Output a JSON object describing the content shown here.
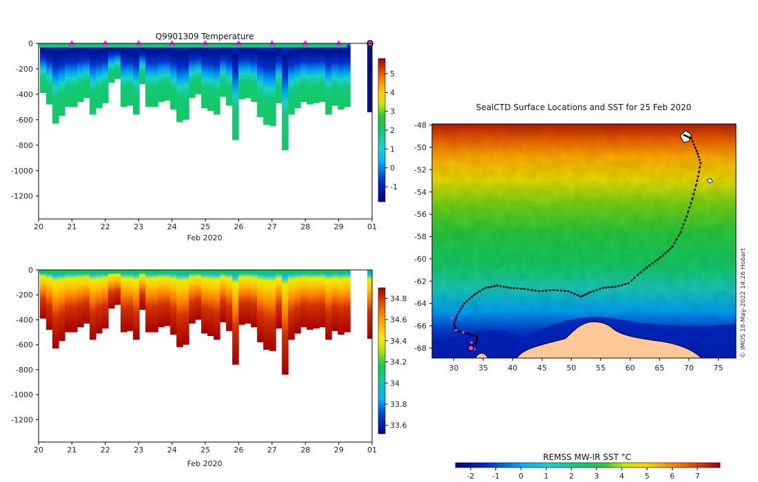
{
  "chart_data": [
    {
      "type": "heatmap",
      "title": "Q9901309  Temperature",
      "xlabel": "Feb 2020",
      "ylabel": "",
      "x_ticks": [
        "20",
        "21",
        "22",
        "23",
        "24",
        "25",
        "26",
        "27",
        "28",
        "29",
        "01"
      ],
      "y_ticks": [
        0,
        -200,
        -400,
        -600,
        -800,
        -1000,
        -1200
      ],
      "ylim": [
        -1380,
        0
      ],
      "xlim": [
        20,
        30
      ],
      "colorbar": {
        "ticks": [
          5,
          4,
          3,
          2,
          1,
          0,
          -1
        ],
        "range": [
          -1.8,
          5.8
        ]
      },
      "profile_markers_days": [
        21,
        22,
        23,
        24,
        25,
        26,
        27,
        28,
        29,
        30
      ],
      "profile_depths_m": [
        -390,
        -480,
        -630,
        -570,
        -500,
        -500,
        -460,
        -430,
        -560,
        -510,
        -470,
        -310,
        -280,
        -500,
        -490,
        -560,
        -320,
        -500,
        -500,
        -460,
        -450,
        -520,
        -620,
        -600,
        -430,
        -400,
        -510,
        -530,
        -560,
        -420,
        -490,
        -760,
        -440,
        -430,
        -460,
        -580,
        -640,
        -650,
        -470,
        -840,
        -560,
        -510,
        -460,
        -480,
        -470,
        -460,
        -560,
        -490,
        -520,
        -500
      ]
    },
    {
      "type": "heatmap",
      "title": "",
      "xlabel": "Feb 2020",
      "ylabel": "",
      "x_ticks": [
        "20",
        "21",
        "22",
        "23",
        "24",
        "25",
        "26",
        "27",
        "28",
        "29",
        "01"
      ],
      "y_ticks": [
        0,
        -200,
        -400,
        -600,
        -800,
        -1000,
        -1200
      ],
      "ylim": [
        -1380,
        0
      ],
      "xlim": [
        20,
        30
      ],
      "colorbar": {
        "ticks": [
          "34.8",
          "34.6",
          "34.4",
          "34.2",
          "34",
          "33.8",
          "33.6"
        ],
        "range": [
          33.52,
          34.9
        ]
      }
    },
    {
      "type": "heatmap",
      "title": "SealCTD Surface Locations and SST for 25 Feb 2020",
      "xlabel": "",
      "ylabel": "",
      "x_ticks": [
        30,
        35,
        40,
        45,
        50,
        55,
        60,
        65,
        70,
        75
      ],
      "y_ticks": [
        -48,
        -50,
        -52,
        -54,
        -56,
        -58,
        -60,
        -62,
        -64,
        -66,
        -68
      ],
      "xlim": [
        26.3,
        78
      ],
      "ylim": [
        -68.9,
        -47.9
      ],
      "colorbar": {
        "label": "REMSS MW-IR SST °C",
        "ticks": [
          -2,
          -1,
          0,
          1,
          2,
          3,
          4,
          5,
          6,
          7
        ],
        "range": [
          -2.6,
          7.9
        ]
      },
      "track": [
        [
          69.2,
          -48.9
        ],
        [
          70.4,
          -49.2
        ],
        [
          71.3,
          -50.3
        ],
        [
          72.0,
          -51.4
        ],
        [
          71.4,
          -53.0
        ],
        [
          70.6,
          -54.6
        ],
        [
          69.6,
          -56.2
        ],
        [
          68.6,
          -57.6
        ],
        [
          67.2,
          -58.9
        ],
        [
          65.6,
          -59.7
        ],
        [
          63.8,
          -60.4
        ],
        [
          61.8,
          -61.2
        ],
        [
          59.7,
          -62.2
        ],
        [
          57.5,
          -62.5
        ],
        [
          55.4,
          -62.6
        ],
        [
          53.2,
          -63.0
        ],
        [
          51.6,
          -63.4
        ],
        [
          49.5,
          -62.9
        ],
        [
          47.0,
          -62.8
        ],
        [
          44.5,
          -62.9
        ],
        [
          42.0,
          -62.7
        ],
        [
          39.6,
          -62.6
        ],
        [
          37.4,
          -62.4
        ],
        [
          35.4,
          -62.6
        ],
        [
          33.5,
          -63.2
        ],
        [
          31.8,
          -64.0
        ],
        [
          30.6,
          -65.0
        ],
        [
          30.0,
          -65.9
        ],
        [
          30.6,
          -66.5
        ],
        [
          32.4,
          -66.7
        ],
        [
          34.0,
          -67.0
        ],
        [
          33.8,
          -67.6
        ],
        [
          32.6,
          -68.0
        ]
      ],
      "pink_points": [
        [
          29.7,
          -65.3
        ],
        [
          30.4,
          -66.4
        ],
        [
          31.6,
          -66.6
        ],
        [
          33.5,
          -68.1
        ],
        [
          33.0,
          -67.5
        ]
      ],
      "current_position": [
        32.9,
        -68.0
      ]
    }
  ],
  "watermark": "©  IMOS 18-May-2022 14:26 Hobart"
}
